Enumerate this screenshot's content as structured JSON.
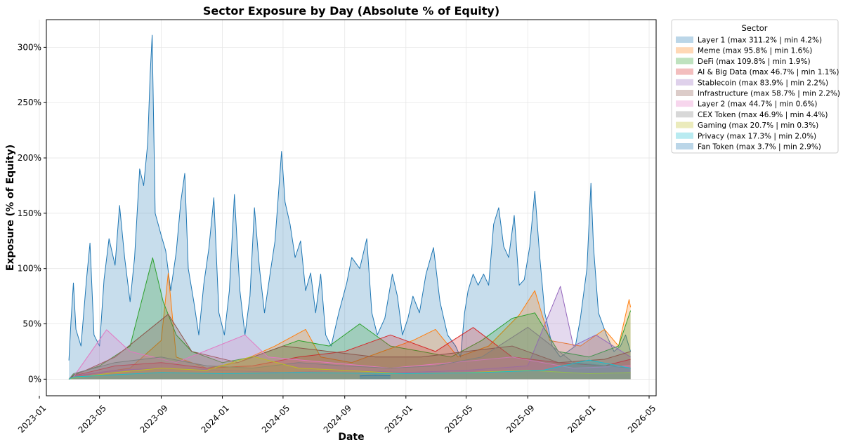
{
  "chart_data": {
    "type": "area",
    "title": "Sector Exposure by Day (Absolute % of Equity)",
    "xlabel": "Date",
    "ylabel": "Exposure (% of Equity)",
    "x_range": [
      "2023-01-15",
      "2026-05-15"
    ],
    "ylim": [
      -15,
      325
    ],
    "grid": true,
    "x_ticks": [
      "2023-01",
      "2023-05",
      "2023-09",
      "2024-01",
      "2024-05",
      "2024-09",
      "2025-01",
      "2025-05",
      "2025-09",
      "2026-01",
      "2026-05"
    ],
    "y_ticks": [
      0,
      50,
      100,
      150,
      200,
      250,
      300
    ],
    "y_tick_labels": [
      "0%",
      "50%",
      "100%",
      "150%",
      "200%",
      "250%",
      "300%"
    ],
    "legend": {
      "title": "Sector",
      "position": "outside-top-right"
    },
    "series": [
      {
        "name": "Layer 1",
        "legend_label": "Layer 1  (max 311.2% | min 4.2%)",
        "color": "#1f77b4",
        "max": 311.2,
        "min": 4.2,
        "points": [
          [
            "2023-03-01",
            17
          ],
          [
            "2023-03-05",
            52
          ],
          [
            "2023-03-10",
            87
          ],
          [
            "2023-03-15",
            45
          ],
          [
            "2023-03-25",
            30
          ],
          [
            "2023-04-05",
            90
          ],
          [
            "2023-04-12",
            123
          ],
          [
            "2023-04-20",
            40
          ],
          [
            "2023-05-01",
            30
          ],
          [
            "2023-05-10",
            90
          ],
          [
            "2023-05-20",
            127
          ],
          [
            "2023-06-01",
            103
          ],
          [
            "2023-06-10",
            157
          ],
          [
            "2023-06-20",
            110
          ],
          [
            "2023-07-01",
            70
          ],
          [
            "2023-07-10",
            110
          ],
          [
            "2023-07-20",
            190
          ],
          [
            "2023-07-28",
            175
          ],
          [
            "2023-08-05",
            213
          ],
          [
            "2023-08-10",
            276
          ],
          [
            "2023-08-14",
            311
          ],
          [
            "2023-08-20",
            150
          ],
          [
            "2023-09-01",
            130
          ],
          [
            "2023-09-10",
            116
          ],
          [
            "2023-09-20",
            80
          ],
          [
            "2023-10-01",
            115
          ],
          [
            "2023-10-10",
            160
          ],
          [
            "2023-10-18",
            186
          ],
          [
            "2023-10-25",
            100
          ],
          [
            "2023-11-05",
            70
          ],
          [
            "2023-11-15",
            40
          ],
          [
            "2023-11-25",
            86
          ],
          [
            "2023-12-05",
            118
          ],
          [
            "2023-12-15",
            164
          ],
          [
            "2023-12-25",
            60
          ],
          [
            "2024-01-05",
            40
          ],
          [
            "2024-01-15",
            80
          ],
          [
            "2024-01-25",
            167
          ],
          [
            "2024-02-05",
            80
          ],
          [
            "2024-02-15",
            40
          ],
          [
            "2024-02-25",
            75
          ],
          [
            "2024-03-05",
            155
          ],
          [
            "2024-03-15",
            100
          ],
          [
            "2024-03-25",
            60
          ],
          [
            "2024-04-05",
            95
          ],
          [
            "2024-04-15",
            125
          ],
          [
            "2024-04-28",
            206
          ],
          [
            "2024-05-05",
            160
          ],
          [
            "2024-05-15",
            140
          ],
          [
            "2024-05-25",
            110
          ],
          [
            "2024-06-05",
            125
          ],
          [
            "2024-06-15",
            80
          ],
          [
            "2024-06-25",
            96
          ],
          [
            "2024-07-05",
            60
          ],
          [
            "2024-07-15",
            95
          ],
          [
            "2024-07-25",
            40
          ],
          [
            "2024-08-05",
            30
          ],
          [
            "2024-08-20",
            60
          ],
          [
            "2024-09-05",
            87
          ],
          [
            "2024-09-15",
            110
          ],
          [
            "2024-10-01",
            100
          ],
          [
            "2024-10-15",
            127
          ],
          [
            "2024-10-25",
            60
          ],
          [
            "2024-11-05",
            40
          ],
          [
            "2024-11-20",
            55
          ],
          [
            "2024-12-05",
            95
          ],
          [
            "2024-12-15",
            75
          ],
          [
            "2024-12-25",
            40
          ],
          [
            "2025-01-05",
            55
          ],
          [
            "2025-01-15",
            75
          ],
          [
            "2025-01-28",
            60
          ],
          [
            "2025-02-10",
            95
          ],
          [
            "2025-02-25",
            119
          ],
          [
            "2025-03-10",
            70
          ],
          [
            "2025-03-25",
            40
          ],
          [
            "2025-04-10",
            30
          ],
          [
            "2025-04-20",
            20
          ],
          [
            "2025-04-28",
            60
          ],
          [
            "2025-05-05",
            80
          ],
          [
            "2025-05-15",
            95
          ],
          [
            "2025-05-25",
            85
          ],
          [
            "2025-06-05",
            95
          ],
          [
            "2025-06-15",
            85
          ],
          [
            "2025-06-25",
            140
          ],
          [
            "2025-07-05",
            155
          ],
          [
            "2025-07-15",
            120
          ],
          [
            "2025-07-25",
            110
          ],
          [
            "2025-08-05",
            148
          ],
          [
            "2025-08-15",
            85
          ],
          [
            "2025-08-25",
            90
          ],
          [
            "2025-09-05",
            120
          ],
          [
            "2025-09-15",
            170
          ],
          [
            "2025-09-25",
            110
          ],
          [
            "2025-10-05",
            60
          ],
          [
            "2025-10-20",
            30
          ],
          [
            "2025-11-05",
            20
          ],
          [
            "2025-11-20",
            25
          ],
          [
            "2025-12-05",
            30
          ],
          [
            "2025-12-15",
            55
          ],
          [
            "2025-12-28",
            100
          ],
          [
            "2026-01-05",
            177
          ],
          [
            "2026-01-10",
            120
          ],
          [
            "2026-01-20",
            60
          ],
          [
            "2026-02-05",
            40
          ],
          [
            "2026-02-20",
            25
          ],
          [
            "2026-03-05",
            30
          ],
          [
            "2026-03-15",
            40
          ],
          [
            "2026-03-25",
            25
          ]
        ]
      },
      {
        "name": "Meme",
        "legend_label": "Meme  (max 95.8% | min 1.6%)",
        "color": "#ff7f0e",
        "max": 95.8,
        "min": 1.6,
        "points": [
          [
            "2023-03-01",
            0
          ],
          [
            "2023-03-10",
            2
          ],
          [
            "2023-05-01",
            6
          ],
          [
            "2023-07-01",
            10
          ],
          [
            "2023-09-01",
            35
          ],
          [
            "2023-09-15",
            95.8
          ],
          [
            "2023-10-01",
            20
          ],
          [
            "2023-12-01",
            10
          ],
          [
            "2024-02-01",
            15
          ],
          [
            "2024-04-15",
            30
          ],
          [
            "2024-06-15",
            45
          ],
          [
            "2024-07-15",
            20
          ],
          [
            "2024-09-15",
            15
          ],
          [
            "2024-11-15",
            25
          ],
          [
            "2025-01-15",
            35
          ],
          [
            "2025-03-01",
            45
          ],
          [
            "2025-04-15",
            20
          ],
          [
            "2025-06-15",
            30
          ],
          [
            "2025-08-15",
            58
          ],
          [
            "2025-09-15",
            80
          ],
          [
            "2025-10-15",
            35
          ],
          [
            "2025-12-15",
            30
          ],
          [
            "2026-02-01",
            45
          ],
          [
            "2026-03-01",
            30
          ],
          [
            "2026-03-22",
            72
          ],
          [
            "2026-03-25",
            65
          ]
        ]
      },
      {
        "name": "DeFi",
        "legend_label": "DeFi  (max 109.8% | min 1.9%)",
        "color": "#2ca02c",
        "max": 109.8,
        "min": 1.9,
        "points": [
          [
            "2023-03-01",
            0
          ],
          [
            "2023-03-10",
            4
          ],
          [
            "2023-05-01",
            12
          ],
          [
            "2023-07-01",
            30
          ],
          [
            "2023-08-15",
            109.8
          ],
          [
            "2023-09-05",
            70
          ],
          [
            "2023-10-01",
            40
          ],
          [
            "2023-11-01",
            25
          ],
          [
            "2024-01-01",
            15
          ],
          [
            "2024-03-01",
            20
          ],
          [
            "2024-06-01",
            35
          ],
          [
            "2024-08-01",
            30
          ],
          [
            "2024-10-01",
            50
          ],
          [
            "2024-12-01",
            30
          ],
          [
            "2025-02-01",
            25
          ],
          [
            "2025-04-01",
            20
          ],
          [
            "2025-06-01",
            35
          ],
          [
            "2025-08-01",
            55
          ],
          [
            "2025-09-15",
            60
          ],
          [
            "2025-11-01",
            25
          ],
          [
            "2026-01-01",
            20
          ],
          [
            "2026-03-01",
            30
          ],
          [
            "2026-03-25",
            62
          ]
        ]
      },
      {
        "name": "AI & Big Data",
        "legend_label": "AI & Big Data  (max 46.7% | min 1.1%)",
        "color": "#d62728",
        "max": 46.7,
        "min": 1.1,
        "points": [
          [
            "2023-03-01",
            0
          ],
          [
            "2023-03-10",
            3
          ],
          [
            "2023-06-01",
            12
          ],
          [
            "2023-09-01",
            15
          ],
          [
            "2023-12-01",
            10
          ],
          [
            "2024-03-01",
            12
          ],
          [
            "2024-06-01",
            20
          ],
          [
            "2024-09-01",
            25
          ],
          [
            "2024-12-01",
            40
          ],
          [
            "2025-03-01",
            25
          ],
          [
            "2025-05-15",
            46.7
          ],
          [
            "2025-08-01",
            20
          ],
          [
            "2025-11-01",
            15
          ],
          [
            "2026-02-01",
            12
          ],
          [
            "2026-03-25",
            18
          ]
        ]
      },
      {
        "name": "Stablecoin",
        "legend_label": "Stablecoin  (max 83.9% | min 2.2%)",
        "color": "#9467bd",
        "max": 83.9,
        "min": 2.2,
        "points": [
          [
            "2023-03-01",
            0
          ],
          [
            "2023-03-10",
            3
          ],
          [
            "2023-06-01",
            8
          ],
          [
            "2023-09-01",
            10
          ],
          [
            "2024-01-01",
            8
          ],
          [
            "2024-05-01",
            6
          ],
          [
            "2024-09-01",
            8
          ],
          [
            "2025-01-01",
            6
          ],
          [
            "2025-05-01",
            8
          ],
          [
            "2025-09-01",
            12
          ],
          [
            "2025-11-05",
            83.9
          ],
          [
            "2025-12-01",
            30
          ],
          [
            "2026-01-15",
            40
          ],
          [
            "2026-03-25",
            20
          ]
        ]
      },
      {
        "name": "Infrastructure",
        "legend_label": "Infrastructure  (max 58.7% | min 2.2%)",
        "color": "#8c564b",
        "max": 58.7,
        "min": 2.2,
        "points": [
          [
            "2023-03-01",
            0
          ],
          [
            "2023-03-10",
            3
          ],
          [
            "2023-06-01",
            20
          ],
          [
            "2023-09-15",
            58.7
          ],
          [
            "2023-11-01",
            25
          ],
          [
            "2024-02-01",
            15
          ],
          [
            "2024-05-01",
            30
          ],
          [
            "2024-08-01",
            25
          ],
          [
            "2024-11-01",
            20
          ],
          [
            "2025-02-01",
            20
          ],
          [
            "2025-05-01",
            25
          ],
          [
            "2025-08-01",
            30
          ],
          [
            "2025-11-01",
            15
          ],
          [
            "2026-02-01",
            18
          ],
          [
            "2026-03-25",
            25
          ]
        ]
      },
      {
        "name": "Layer 2",
        "legend_label": "Layer 2  (max 44.7% | min 0.6%)",
        "color": "#e377c2",
        "max": 44.7,
        "min": 0.6,
        "points": [
          [
            "2023-03-01",
            0
          ],
          [
            "2023-03-10",
            2
          ],
          [
            "2023-05-15",
            44.7
          ],
          [
            "2023-07-01",
            25
          ],
          [
            "2023-10-01",
            15
          ],
          [
            "2024-02-15",
            40
          ],
          [
            "2024-04-01",
            20
          ],
          [
            "2024-08-01",
            15
          ],
          [
            "2024-12-01",
            10
          ],
          [
            "2025-04-01",
            15
          ],
          [
            "2025-08-01",
            20
          ],
          [
            "2025-12-01",
            10
          ],
          [
            "2026-03-25",
            12
          ]
        ]
      },
      {
        "name": "CEX Token",
        "legend_label": "CEX Token  (max 46.9% | min 4.4%)",
        "color": "#7f7f7f",
        "max": 46.9,
        "min": 4.4,
        "points": [
          [
            "2023-03-01",
            0
          ],
          [
            "2023-03-10",
            5
          ],
          [
            "2023-06-01",
            15
          ],
          [
            "2023-09-01",
            20
          ],
          [
            "2023-12-01",
            12
          ],
          [
            "2024-03-01",
            10
          ],
          [
            "2024-06-01",
            15
          ],
          [
            "2024-09-01",
            12
          ],
          [
            "2024-12-01",
            10
          ],
          [
            "2025-03-01",
            12
          ],
          [
            "2025-06-01",
            20
          ],
          [
            "2025-09-01",
            46.9
          ],
          [
            "2025-12-01",
            15
          ],
          [
            "2026-03-25",
            10
          ]
        ]
      },
      {
        "name": "Gaming",
        "legend_label": "Gaming  (max 20.7% | min 0.3%)",
        "color": "#bcbd22",
        "max": 20.7,
        "min": 0.3,
        "points": [
          [
            "2023-03-01",
            0
          ],
          [
            "2023-03-10",
            1
          ],
          [
            "2023-06-01",
            6
          ],
          [
            "2023-09-01",
            10
          ],
          [
            "2023-12-01",
            8
          ],
          [
            "2024-03-01",
            20.7
          ],
          [
            "2024-06-01",
            10
          ],
          [
            "2024-09-01",
            8
          ],
          [
            "2025-01-01",
            5
          ],
          [
            "2025-05-01",
            6
          ],
          [
            "2025-09-01",
            8
          ],
          [
            "2026-01-01",
            5
          ],
          [
            "2026-03-25",
            6
          ]
        ]
      },
      {
        "name": "Privacy",
        "legend_label": "Privacy  (max 17.3% | min 2.0%)",
        "color": "#17becf",
        "max": 17.3,
        "min": 2.0,
        "points": [
          [
            "2023-03-01",
            0
          ],
          [
            "2023-03-10",
            2
          ],
          [
            "2023-06-01",
            4
          ],
          [
            "2023-09-01",
            6
          ],
          [
            "2024-01-01",
            5
          ],
          [
            "2024-06-01",
            6
          ],
          [
            "2025-01-01",
            5
          ],
          [
            "2025-06-01",
            6
          ],
          [
            "2025-10-01",
            8
          ],
          [
            "2026-01-01",
            17.3
          ],
          [
            "2026-03-25",
            10
          ]
        ]
      },
      {
        "name": "Fan Token",
        "legend_label": "Fan Token  (max 3.7% | min 2.9%)",
        "color": "#1f77b4",
        "max": 3.7,
        "min": 2.9,
        "points": [
          [
            "2024-10-01",
            2.9
          ],
          [
            "2024-11-01",
            3.7
          ],
          [
            "2024-12-01",
            3.1
          ]
        ]
      }
    ]
  }
}
